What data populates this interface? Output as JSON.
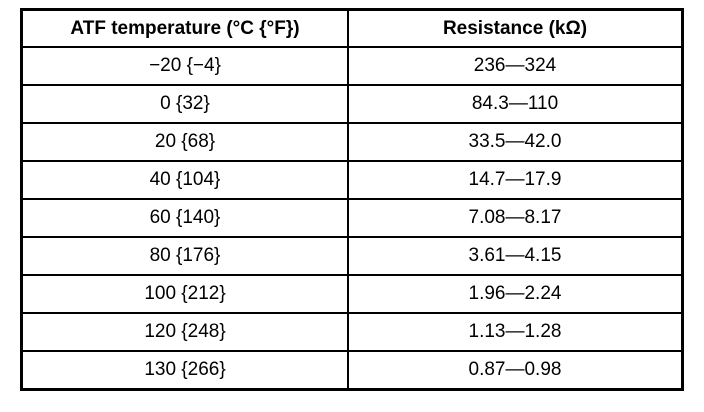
{
  "table": {
    "header": [
      "ATF temperature (°C {°F})",
      "Resistance (kΩ)"
    ],
    "rows": [
      [
        "−20 {−4}",
        "236—324"
      ],
      [
        "0 {32}",
        "84.3—110"
      ],
      [
        "20 {68}",
        "33.5—42.0"
      ],
      [
        "40 {104}",
        "14.7—17.9"
      ],
      [
        "60 {140}",
        "7.08—8.17"
      ],
      [
        "80 {176}",
        "3.61—4.15"
      ],
      [
        "100 {212}",
        "1.96—2.24"
      ],
      [
        "120 {248}",
        "1.13—1.28"
      ],
      [
        "130 {266}",
        "0.87—0.98"
      ]
    ]
  }
}
